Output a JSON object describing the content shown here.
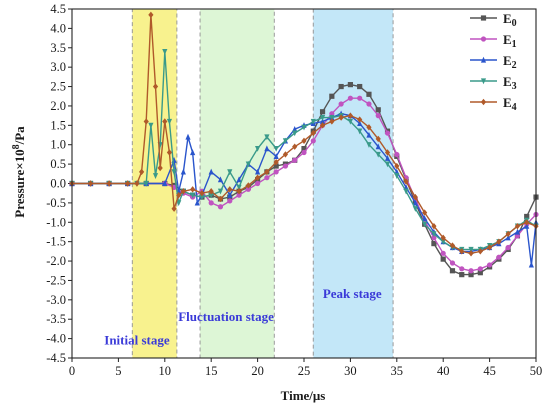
{
  "chart_data": {
    "type": "line",
    "xlabel": "Time/μs",
    "ylabel": "Pressure×10",
    "ylabel_sup": "8",
    "ylabel_unit": "/Pa",
    "xlim": [
      0,
      50
    ],
    "ylim": [
      -4.5,
      4.5
    ],
    "xticks": [
      0,
      5,
      10,
      15,
      20,
      25,
      30,
      35,
      40,
      45,
      50
    ],
    "yticks": [
      -4.5,
      -4.0,
      -3.5,
      -3.0,
      -2.5,
      -2.0,
      -1.5,
      -1.0,
      -0.5,
      0.0,
      0.5,
      1.0,
      1.5,
      2.0,
      2.5,
      3.0,
      3.5,
      4.0,
      4.5
    ],
    "ytick_labels": [
      "-4.5",
      "-4.0",
      "-3.5",
      "-3.0",
      "-2.5",
      "-2.0",
      "-1.5",
      "-1.0",
      "-0.5",
      "0.0",
      "0.5",
      "1.0",
      "1.5",
      "2.0",
      "2.5",
      "3.0",
      "3.5",
      "4.0",
      "4.5"
    ],
    "regions": [
      {
        "label": "Initial stage",
        "x0": 6.5,
        "x1": 11.3,
        "color": "#f7f07a",
        "label_x": 7.0,
        "label_y": -4.15
      },
      {
        "label": "Fluctuation stage",
        "x0": 13.8,
        "x1": 21.8,
        "color": "#d7f5cf",
        "label_x": 16.6,
        "label_y": -3.55
      },
      {
        "label": "Peak stage",
        "x0": 26.0,
        "x1": 34.6,
        "color": "#b9e3f7",
        "label_x": 30.2,
        "label_y": -2.95
      }
    ],
    "legend_position": "top-right",
    "series": [
      {
        "name": "E",
        "sub": "0",
        "color": "#555555",
        "marker": "square",
        "points": [
          [
            0,
            0
          ],
          [
            2,
            0
          ],
          [
            4,
            0
          ],
          [
            6,
            0
          ],
          [
            8,
            0
          ],
          [
            10,
            0
          ],
          [
            11,
            -0.05
          ],
          [
            12,
            -0.2
          ],
          [
            13,
            -0.3
          ],
          [
            14,
            -0.35
          ],
          [
            15,
            -0.3
          ],
          [
            16,
            -0.4
          ],
          [
            17,
            -0.35
          ],
          [
            18,
            -0.2
          ],
          [
            19,
            -0.1
          ],
          [
            20,
            0.1
          ],
          [
            21,
            0.3
          ],
          [
            22,
            0.45
          ],
          [
            23,
            0.5
          ],
          [
            24,
            0.6
          ],
          [
            25,
            0.9
          ],
          [
            26,
            1.35
          ],
          [
            27,
            1.85
          ],
          [
            28,
            2.25
          ],
          [
            29,
            2.5
          ],
          [
            30,
            2.55
          ],
          [
            31,
            2.5
          ],
          [
            32,
            2.3
          ],
          [
            33,
            1.9
          ],
          [
            34,
            1.35
          ],
          [
            35,
            0.7
          ],
          [
            36,
            0.1
          ],
          [
            37,
            -0.5
          ],
          [
            38,
            -1.05
          ],
          [
            39,
            -1.55
          ],
          [
            40,
            -1.95
          ],
          [
            41,
            -2.25
          ],
          [
            42,
            -2.35
          ],
          [
            43,
            -2.35
          ],
          [
            44,
            -2.3
          ],
          [
            45,
            -2.15
          ],
          [
            46,
            -1.95
          ],
          [
            47,
            -1.7
          ],
          [
            48,
            -1.35
          ],
          [
            49,
            -0.85
          ],
          [
            50,
            -0.35
          ]
        ]
      },
      {
        "name": "E",
        "sub": "1",
        "color": "#c054c0",
        "marker": "circle",
        "points": [
          [
            0,
            0
          ],
          [
            2,
            0
          ],
          [
            4,
            0
          ],
          [
            6,
            0
          ],
          [
            8,
            0
          ],
          [
            10,
            0
          ],
          [
            11,
            -0.1
          ],
          [
            12,
            -0.25
          ],
          [
            13,
            -0.35
          ],
          [
            14,
            -0.2
          ],
          [
            15,
            -0.5
          ],
          [
            16,
            -0.6
          ],
          [
            17,
            -0.45
          ],
          [
            18,
            -0.3
          ],
          [
            19,
            -0.15
          ],
          [
            20,
            0.0
          ],
          [
            21,
            0.15
          ],
          [
            22,
            0.3
          ],
          [
            23,
            0.45
          ],
          [
            24,
            0.6
          ],
          [
            25,
            0.8
          ],
          [
            26,
            1.1
          ],
          [
            27,
            1.5
          ],
          [
            28,
            1.8
          ],
          [
            29,
            2.05
          ],
          [
            30,
            2.2
          ],
          [
            31,
            2.2
          ],
          [
            32,
            2.05
          ],
          [
            33,
            1.75
          ],
          [
            34,
            1.3
          ],
          [
            35,
            0.75
          ],
          [
            36,
            0.15
          ],
          [
            37,
            -0.4
          ],
          [
            38,
            -0.95
          ],
          [
            39,
            -1.4
          ],
          [
            40,
            -1.8
          ],
          [
            41,
            -2.05
          ],
          [
            42,
            -2.2
          ],
          [
            43,
            -2.25
          ],
          [
            44,
            -2.2
          ],
          [
            45,
            -2.1
          ],
          [
            46,
            -1.9
          ],
          [
            47,
            -1.65
          ],
          [
            48,
            -1.35
          ],
          [
            49,
            -1.05
          ],
          [
            50,
            -0.8
          ]
        ]
      },
      {
        "name": "E",
        "sub": "2",
        "color": "#2a55cc",
        "marker": "triangle",
        "points": [
          [
            0,
            0
          ],
          [
            2,
            0
          ],
          [
            4,
            0
          ],
          [
            6,
            0
          ],
          [
            8,
            0
          ],
          [
            10,
            0.0
          ],
          [
            11,
            0.6
          ],
          [
            11.5,
            -0.2
          ],
          [
            12,
            0.3
          ],
          [
            12.5,
            1.2
          ],
          [
            13,
            0.8
          ],
          [
            13.5,
            -0.5
          ],
          [
            14,
            -0.3
          ],
          [
            15,
            0.3
          ],
          [
            16,
            0.1
          ],
          [
            17,
            -0.3
          ],
          [
            18,
            0.1
          ],
          [
            19,
            0.5
          ],
          [
            20,
            0.3
          ],
          [
            21,
            0.9
          ],
          [
            22,
            0.7
          ],
          [
            23,
            1.1
          ],
          [
            24,
            1.4
          ],
          [
            25,
            1.5
          ],
          [
            26,
            1.55
          ],
          [
            27,
            1.6
          ],
          [
            28,
            1.7
          ],
          [
            29,
            1.8
          ],
          [
            30,
            1.75
          ],
          [
            31,
            1.55
          ],
          [
            32,
            1.25
          ],
          [
            33,
            0.95
          ],
          [
            34,
            0.65
          ],
          [
            35,
            0.3
          ],
          [
            36,
            -0.1
          ],
          [
            37,
            -0.5
          ],
          [
            38,
            -0.9
          ],
          [
            39,
            -1.25
          ],
          [
            40,
            -1.5
          ],
          [
            41,
            -1.65
          ],
          [
            42,
            -1.75
          ],
          [
            43,
            -1.75
          ],
          [
            44,
            -1.7
          ],
          [
            45,
            -1.65
          ],
          [
            46,
            -1.55
          ],
          [
            47,
            -1.4
          ],
          [
            48,
            -1.25
          ],
          [
            49,
            -1.1
          ],
          [
            49.5,
            -2.1
          ],
          [
            50,
            -1.0
          ]
        ]
      },
      {
        "name": "E",
        "sub": "3",
        "color": "#3a9a8a",
        "marker": "triangle-down",
        "points": [
          [
            0,
            0
          ],
          [
            2,
            0
          ],
          [
            4,
            0
          ],
          [
            6,
            0
          ],
          [
            7,
            0
          ],
          [
            8,
            0.0
          ],
          [
            8.5,
            1.5
          ],
          [
            9,
            0.2
          ],
          [
            9.5,
            1.0
          ],
          [
            10,
            3.4
          ],
          [
            10.5,
            1.6
          ],
          [
            11,
            0.3
          ],
          [
            11.5,
            -0.5
          ],
          [
            12,
            -0.2
          ],
          [
            13,
            -0.3
          ],
          [
            14,
            -0.35
          ],
          [
            15,
            -0.3
          ],
          [
            16,
            -0.2
          ],
          [
            17,
            0.3
          ],
          [
            18,
            -0.1
          ],
          [
            19,
            0.5
          ],
          [
            20,
            0.9
          ],
          [
            21,
            1.2
          ],
          [
            22,
            0.9
          ],
          [
            23,
            1.1
          ],
          [
            24,
            1.3
          ],
          [
            25,
            1.45
          ],
          [
            26,
            1.6
          ],
          [
            27,
            1.7
          ],
          [
            28,
            1.7
          ],
          [
            29,
            1.75
          ],
          [
            30,
            1.6
          ],
          [
            31,
            1.35
          ],
          [
            32,
            1.0
          ],
          [
            33,
            0.75
          ],
          [
            34,
            0.5
          ],
          [
            35,
            0.2
          ],
          [
            36,
            -0.2
          ],
          [
            37,
            -0.65
          ],
          [
            38,
            -1.05
          ],
          [
            39,
            -1.3
          ],
          [
            40,
            -1.5
          ],
          [
            41,
            -1.65
          ],
          [
            42,
            -1.7
          ],
          [
            43,
            -1.7
          ],
          [
            44,
            -1.7
          ],
          [
            45,
            -1.6
          ],
          [
            46,
            -1.5
          ],
          [
            47,
            -1.3
          ],
          [
            48,
            -1.1
          ],
          [
            49,
            -0.95
          ],
          [
            50,
            -1.1
          ]
        ]
      },
      {
        "name": "E",
        "sub": "4",
        "color": "#b05a2a",
        "marker": "diamond",
        "points": [
          [
            0,
            0
          ],
          [
            2,
            0
          ],
          [
            4,
            0
          ],
          [
            6,
            0
          ],
          [
            7,
            0
          ],
          [
            7.5,
            0.3
          ],
          [
            8,
            1.6
          ],
          [
            8.5,
            4.35
          ],
          [
            9,
            2.5
          ],
          [
            9.5,
            0.4
          ],
          [
            10,
            1.6
          ],
          [
            10.5,
            0.8
          ],
          [
            11,
            -0.65
          ],
          [
            11.5,
            -0.3
          ],
          [
            12,
            -0.2
          ],
          [
            13,
            -0.15
          ],
          [
            14,
            -0.25
          ],
          [
            15,
            -0.2
          ],
          [
            16,
            -0.4
          ],
          [
            17,
            -0.15
          ],
          [
            18,
            -0.2
          ],
          [
            19,
            -0.05
          ],
          [
            20,
            0.15
          ],
          [
            21,
            0.3
          ],
          [
            22,
            0.55
          ],
          [
            23,
            0.75
          ],
          [
            24,
            0.95
          ],
          [
            25,
            1.1
          ],
          [
            26,
            1.3
          ],
          [
            27,
            1.5
          ],
          [
            28,
            1.6
          ],
          [
            29,
            1.7
          ],
          [
            30,
            1.75
          ],
          [
            31,
            1.65
          ],
          [
            32,
            1.45
          ],
          [
            33,
            1.15
          ],
          [
            34,
            0.8
          ],
          [
            35,
            0.45
          ],
          [
            36,
            0.05
          ],
          [
            37,
            -0.35
          ],
          [
            38,
            -0.75
          ],
          [
            39,
            -1.1
          ],
          [
            40,
            -1.4
          ],
          [
            41,
            -1.6
          ],
          [
            42,
            -1.75
          ],
          [
            43,
            -1.8
          ],
          [
            44,
            -1.75
          ],
          [
            45,
            -1.65
          ],
          [
            46,
            -1.5
          ],
          [
            47,
            -1.3
          ],
          [
            48,
            -1.1
          ],
          [
            49,
            -1.0
          ],
          [
            50,
            -1.1
          ]
        ]
      }
    ]
  }
}
